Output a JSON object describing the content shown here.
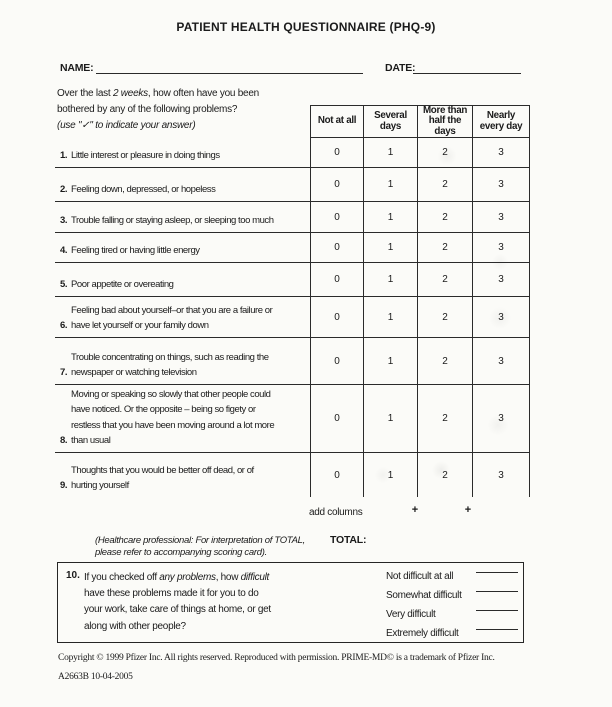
{
  "colors": {
    "ink": "#1b1b1b",
    "paper": "#fbfbf8"
  },
  "title": "PATIENT HEALTH QUESTIONNAIRE (PHQ-9)",
  "name_label": "NAME:",
  "date_label": "DATE:",
  "name_value": "",
  "date_value": "",
  "intro": {
    "l1a": "Over the last ",
    "l1b": "2 weeks",
    "l1c": ", how often have you been",
    "l2": "bothered by any of the following problems?",
    "l3": "(use \"✓\" to indicate your answer)"
  },
  "table": {
    "columns": [
      [
        "Not at all"
      ],
      [
        "Several",
        "days"
      ],
      [
        "More than",
        "half the",
        "days"
      ],
      [
        "Nearly",
        "every day"
      ]
    ],
    "questions": [
      {
        "num": "1.",
        "lines": [
          "Little interest or pleasure in doing things"
        ],
        "scores": [
          "0",
          "1",
          "2",
          "3"
        ]
      },
      {
        "num": "2.",
        "lines": [
          "Feeling down, depressed, or hopeless"
        ],
        "scores": [
          "0",
          "1",
          "2",
          "3"
        ]
      },
      {
        "num": "3.",
        "lines": [
          "Trouble falling or staying asleep, or sleeping too much"
        ],
        "scores": [
          "0",
          "1",
          "2",
          "3"
        ]
      },
      {
        "num": "4.",
        "lines": [
          "Feeling tired or having little energy"
        ],
        "scores": [
          "0",
          "1",
          "2",
          "3"
        ]
      },
      {
        "num": "5.",
        "lines": [
          "Poor appetite or overeating"
        ],
        "scores": [
          "0",
          "1",
          "2",
          "3"
        ]
      },
      {
        "num": "6.",
        "lines": [
          "Feeling bad about yourself–or that you are a failure or",
          "have let yourself or your family down"
        ],
        "scores": [
          "0",
          "1",
          "2",
          "3"
        ]
      },
      {
        "num": "7.",
        "lines": [
          "Trouble concentrating on things, such as reading the",
          "newspaper or watching television"
        ],
        "scores": [
          "0",
          "1",
          "2",
          "3"
        ]
      },
      {
        "num": "8.",
        "lines": [
          "Moving or speaking so slowly that other people could",
          "have noticed. Or the opposite – being so figety or",
          "restless that you have been moving around a lot more",
          "than usual"
        ],
        "scores": [
          "0",
          "1",
          "2",
          "3"
        ]
      },
      {
        "num": "9.",
        "lines": [
          "Thoughts that you would be better off dead, or of",
          "hurting yourself"
        ],
        "scores": [
          "0",
          "1",
          "2",
          "3"
        ]
      }
    ],
    "add_columns_label": "add columns",
    "plus": "+"
  },
  "total": {
    "note_l1": "(Healthcare professional: For interpretation of TOTAL,",
    "note_l2": "please refer to accompanying scoring card).",
    "label": "TOTAL:"
  },
  "question10": {
    "num": "10.",
    "l1a": "If you checked off ",
    "l1b": "any problems",
    "l1c": ", how ",
    "l1d": "difficult",
    "l2": "have these problems made it for you to do",
    "l3": "your work, take care of things at home, or get",
    "l4": "along with other people?",
    "options": [
      "Not difficult at all",
      "Somewhat difficult",
      "Very difficult",
      "Extremely difficult"
    ]
  },
  "footer": {
    "copyright": "Copyright © 1999 Pfizer Inc. All rights reserved. Reproduced with permission. PRIME-MD© is a trademark of Pfizer Inc.",
    "form_code": "A2663B 10-04-2005"
  }
}
